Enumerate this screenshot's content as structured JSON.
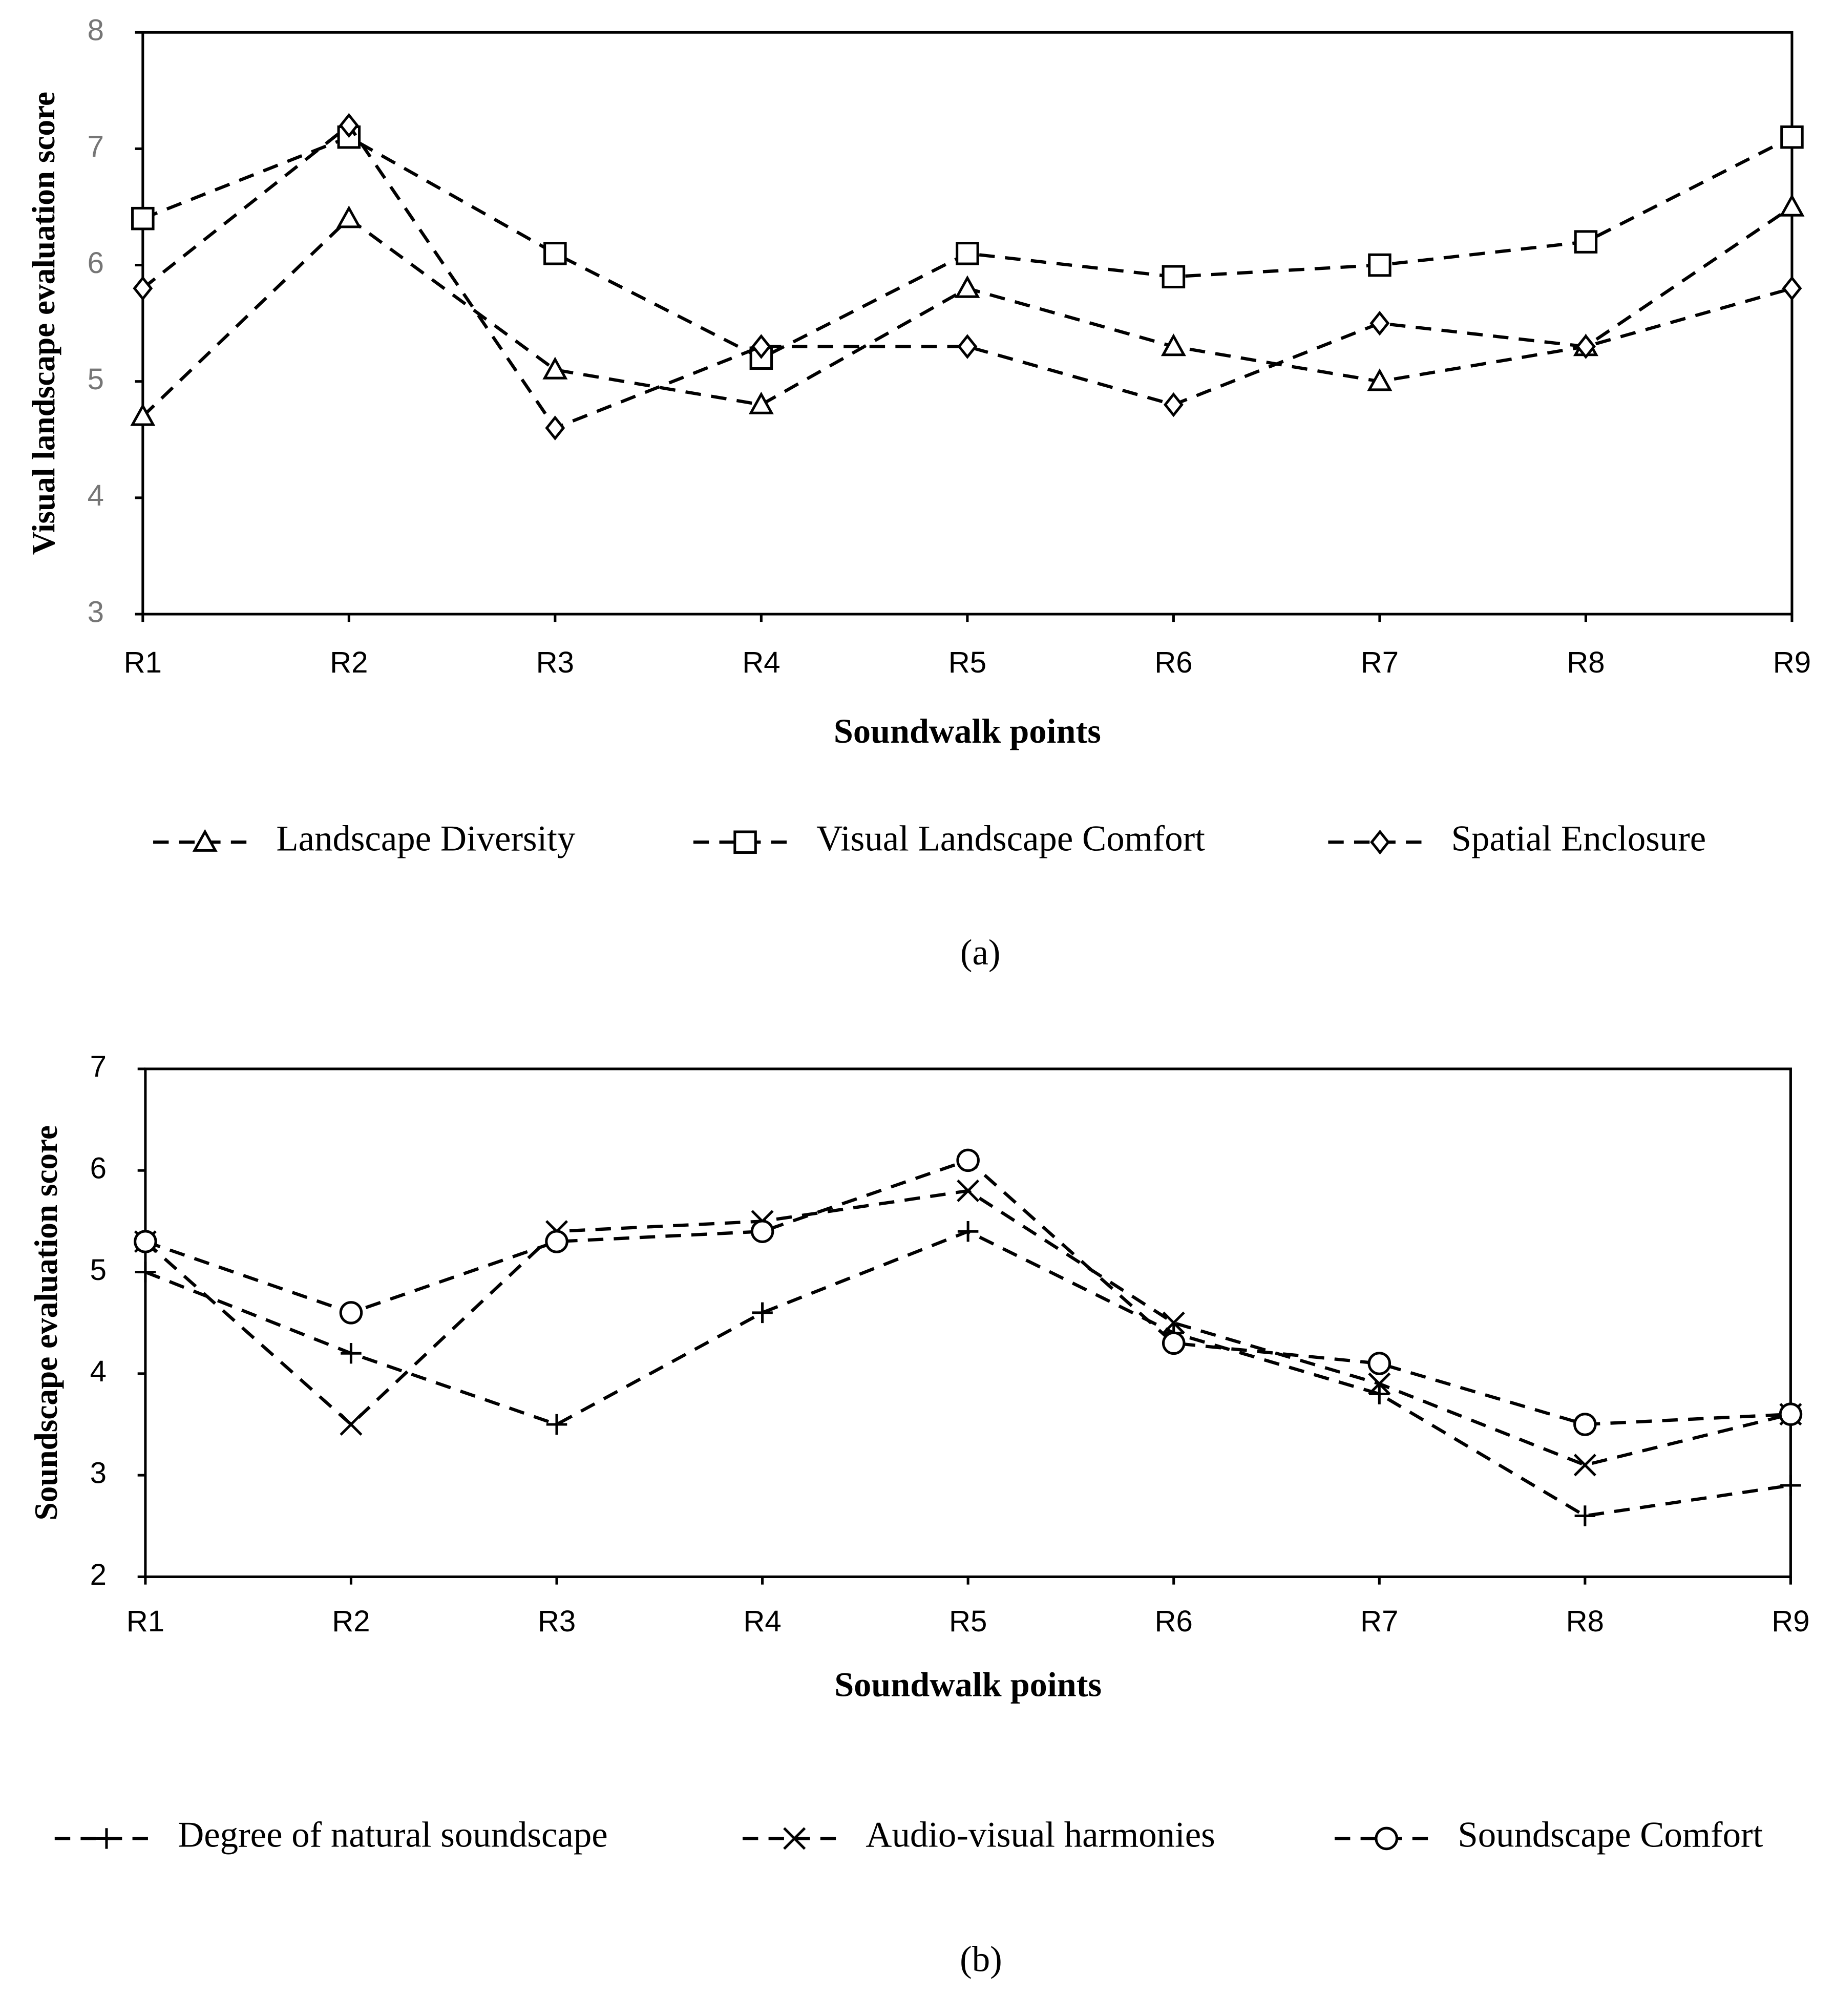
{
  "chart_data": [
    {
      "type": "line",
      "panel_label": "(a)",
      "x_label": "Soundwalk points",
      "y_label": "Visual landscape evaluation score",
      "categories": [
        "R1",
        "R2",
        "R3",
        "R4",
        "R5",
        "R6",
        "R7",
        "R8",
        "R9"
      ],
      "ylim": [
        3,
        8
      ],
      "yticks": [
        3,
        4,
        5,
        6,
        7,
        8
      ],
      "tick_color": "#767676",
      "series": [
        {
          "name": "Landscape Diversity",
          "color": "#000000",
          "marker": "triangle",
          "values": [
            4.7,
            6.4,
            5.1,
            4.8,
            5.8,
            5.3,
            5.0,
            5.3,
            6.5
          ]
        },
        {
          "name": "Visual Landscape Comfort",
          "color": "#000000",
          "marker": "square",
          "values": [
            6.4,
            7.1,
            6.1,
            5.2,
            6.1,
            5.9,
            6.0,
            6.2,
            7.1
          ]
        },
        {
          "name": "Spatial Enclosure",
          "color": "#000000",
          "marker": "diamond",
          "values": [
            5.8,
            7.2,
            4.6,
            5.3,
            5.3,
            4.8,
            5.5,
            5.3,
            5.8
          ]
        }
      ]
    },
    {
      "type": "line",
      "panel_label": "(b)",
      "x_label": "Soundwalk points",
      "y_label": "Soundscape evaluation score",
      "categories": [
        "R1",
        "R2",
        "R3",
        "R4",
        "R5",
        "R6",
        "R7",
        "R8",
        "R9"
      ],
      "ylim": [
        2,
        7
      ],
      "yticks": [
        2,
        3,
        4,
        5,
        6,
        7
      ],
      "tick_color": "#000000",
      "series": [
        {
          "name": "Degree of natural soundscape",
          "color": "#000000",
          "marker": "plus",
          "values": [
            5.0,
            4.2,
            3.5,
            4.6,
            5.4,
            4.4,
            3.8,
            2.6,
            2.9
          ]
        },
        {
          "name": "Audio-visual harmonies",
          "color": "#000000",
          "marker": "cross",
          "values": [
            5.3,
            3.5,
            5.4,
            5.5,
            5.8,
            4.5,
            3.9,
            3.1,
            3.6
          ]
        },
        {
          "name": "Soundscape Comfort",
          "color": "#000000",
          "marker": "circle",
          "values": [
            5.3,
            4.6,
            5.3,
            5.4,
            6.1,
            4.3,
            4.1,
            3.5,
            3.6
          ]
        }
      ]
    }
  ]
}
